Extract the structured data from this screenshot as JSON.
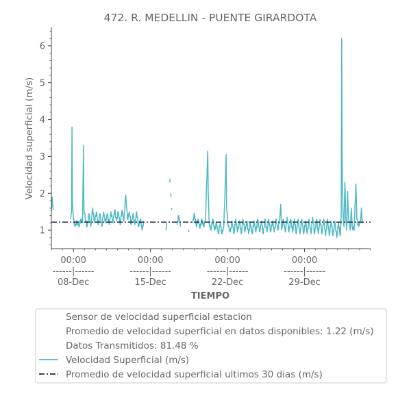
{
  "chart_data": {
    "type": "line",
    "title": "472. R. MEDELLIN - PUENTE GIRARDOTA",
    "xlabel": "TIEMPO",
    "ylabel": "Velocidad superficial (m/s)",
    "ylim": [
      0.5,
      6.5
    ],
    "y_ticks": [
      1,
      2,
      3,
      4,
      5,
      6
    ],
    "x_range_days": [
      "2017-12-06",
      "2018-01-04"
    ],
    "x_ticks": [
      {
        "date": "2017-12-08",
        "time": "00:00",
        "sep": "------|------",
        "day": "08-Dec"
      },
      {
        "date": "2017-12-15",
        "time": "00:00",
        "sep": "------|------",
        "day": "15-Dec"
      },
      {
        "date": "2017-12-22",
        "time": "00:00",
        "sep": "------|------",
        "day": "22-Dec"
      },
      {
        "date": "2017-12-29",
        "time": "00:00",
        "sep": "------|------",
        "day": "29-Dec"
      }
    ],
    "legend_placement": "below",
    "legend_info": [
      "Sensor de velocidad superficial estacion",
      "Promedio de velocidad superficial en datos disponibles: 1.22 (m/s)",
      "Datos Transmitidos: 81.48 %"
    ],
    "series": [
      {
        "name": "Velocidad Superficial (m/s)",
        "color": "#4db8c4",
        "style": "solid",
        "segments": [
          [
            [
              "2017-12-06T00:00",
              1.5
            ],
            [
              "2017-12-06T02:00",
              1.9
            ],
            [
              "2017-12-06T04:00",
              1.55
            ]
          ],
          [
            [
              "2017-12-07T18:00",
              1.3
            ],
            [
              "2017-12-07T20:00",
              1.5
            ],
            [
              "2017-12-07T21:00",
              3.8
            ],
            [
              "2017-12-07T22:00",
              1.7
            ],
            [
              "2017-12-08T00:00",
              1.3
            ],
            [
              "2017-12-08T04:00",
              1.1
            ],
            [
              "2017-12-08T08:00",
              1.25
            ],
            [
              "2017-12-08T12:00",
              1.1
            ],
            [
              "2017-12-08T16:00",
              1.3
            ],
            [
              "2017-12-08T20:00",
              1.2
            ],
            [
              "2017-12-08T22:00",
              3.3
            ],
            [
              "2017-12-08T23:00",
              1.6
            ],
            [
              "2017-12-09T02:00",
              1.3
            ],
            [
              "2017-12-09T06:00",
              1.1
            ],
            [
              "2017-12-09T10:00",
              1.45
            ],
            [
              "2017-12-09T14:00",
              1.1
            ],
            [
              "2017-12-09T18:00",
              1.6
            ],
            [
              "2017-12-09T22:00",
              1.2
            ],
            [
              "2017-12-10T02:00",
              1.5
            ],
            [
              "2017-12-10T06:00",
              1.15
            ],
            [
              "2017-12-10T10:00",
              1.45
            ],
            [
              "2017-12-10T14:00",
              1.1
            ],
            [
              "2017-12-10T18:00",
              1.5
            ],
            [
              "2017-12-10T22:00",
              1.2
            ],
            [
              "2017-12-11T02:00",
              1.45
            ],
            [
              "2017-12-11T06:00",
              1.15
            ],
            [
              "2017-12-11T10:00",
              1.5
            ],
            [
              "2017-12-11T14:00",
              1.2
            ],
            [
              "2017-12-11T18:00",
              1.55
            ],
            [
              "2017-12-11T22:00",
              1.25
            ],
            [
              "2017-12-12T02:00",
              1.5
            ],
            [
              "2017-12-12T06:00",
              1.15
            ],
            [
              "2017-12-12T10:00",
              1.55
            ],
            [
              "2017-12-12T14:00",
              1.25
            ],
            [
              "2017-12-12T18:00",
              1.95
            ],
            [
              "2017-12-12T22:00",
              1.3
            ],
            [
              "2017-12-13T02:00",
              1.5
            ],
            [
              "2017-12-13T06:00",
              1.15
            ],
            [
              "2017-12-13T10:00",
              1.45
            ],
            [
              "2017-12-13T14:00",
              1.15
            ],
            [
              "2017-12-13T18:00",
              1.5
            ],
            [
              "2017-12-13T22:00",
              1.1
            ],
            [
              "2017-12-14T02:00",
              1.3
            ],
            [
              "2017-12-14T06:00",
              1.0
            ],
            [
              "2017-12-14T09:00",
              1.25
            ]
          ],
          [
            [
              "2017-12-16T10:00",
              1.0
            ],
            [
              "2017-12-16T11:00",
              1.2
            ]
          ],
          [
            [
              "2017-12-16T18:00",
              2.3
            ],
            [
              "2017-12-16T19:00",
              2.4
            ]
          ],
          [
            [
              "2017-12-16T20:00",
              2.0
            ],
            [
              "2017-12-16T21:00",
              1.9
            ]
          ],
          [
            [
              "2017-12-16T22:00",
              1.6
            ],
            [
              "2017-12-16T23:00",
              1.55
            ]
          ],
          [
            [
              "2017-12-17T10:00",
              1.15
            ],
            [
              "2017-12-17T14:00",
              1.4
            ],
            [
              "2017-12-17T18:00",
              1.1
            ]
          ],
          [
            [
              "2017-12-18T10:00",
              1.0
            ],
            [
              "2017-12-18T12:00",
              0.95
            ]
          ],
          [
            [
              "2017-12-18T20:00",
              1.2
            ],
            [
              "2017-12-19T00:00",
              1.45
            ],
            [
              "2017-12-19T04:00",
              1.1
            ],
            [
              "2017-12-19T08:00",
              1.3
            ],
            [
              "2017-12-19T12:00",
              1.05
            ],
            [
              "2017-12-19T16:00",
              1.3
            ],
            [
              "2017-12-19T20:00",
              1.1
            ],
            [
              "2017-12-20T00:00",
              1.3
            ],
            [
              "2017-12-20T04:00",
              2.8
            ],
            [
              "2017-12-20T05:00",
              3.15
            ],
            [
              "2017-12-20T06:00",
              2.0
            ],
            [
              "2017-12-20T08:00",
              1.2
            ],
            [
              "2017-12-20T12:00",
              1.0
            ],
            [
              "2017-12-20T16:00",
              1.3
            ],
            [
              "2017-12-20T20:00",
              1.0
            ],
            [
              "2017-12-21T00:00",
              1.2
            ],
            [
              "2017-12-21T04:00",
              0.9
            ],
            [
              "2017-12-21T08:00",
              1.2
            ],
            [
              "2017-12-21T12:00",
              0.9
            ],
            [
              "2017-12-21T16:00",
              1.1
            ],
            [
              "2017-12-21T20:00",
              2.6
            ],
            [
              "2017-12-21T21:00",
              3.05
            ],
            [
              "2017-12-21T22:00",
              1.6
            ],
            [
              "2017-12-22T02:00",
              1.1
            ],
            [
              "2017-12-22T06:00",
              0.95
            ],
            [
              "2017-12-22T10:00",
              1.25
            ],
            [
              "2017-12-22T14:00",
              0.9
            ],
            [
              "2017-12-22T18:00",
              1.3
            ],
            [
              "2017-12-22T22:00",
              0.95
            ],
            [
              "2017-12-23T02:00",
              1.25
            ],
            [
              "2017-12-23T06:00",
              0.9
            ],
            [
              "2017-12-23T10:00",
              1.3
            ],
            [
              "2017-12-23T14:00",
              0.95
            ],
            [
              "2017-12-23T18:00",
              1.25
            ],
            [
              "2017-12-23T22:00",
              0.9
            ],
            [
              "2017-12-24T02:00",
              1.2
            ],
            [
              "2017-12-24T06:00",
              0.9
            ],
            [
              "2017-12-24T10:00",
              1.25
            ],
            [
              "2017-12-24T14:00",
              0.95
            ],
            [
              "2017-12-24T18:00",
              1.3
            ],
            [
              "2017-12-24T22:00",
              0.95
            ],
            [
              "2017-12-25T02:00",
              1.25
            ],
            [
              "2017-12-25T06:00",
              0.9
            ],
            [
              "2017-12-25T10:00",
              1.3
            ],
            [
              "2017-12-25T14:00",
              0.95
            ],
            [
              "2017-12-25T18:00",
              1.3
            ],
            [
              "2017-12-25T22:00",
              0.95
            ],
            [
              "2017-12-26T02:00",
              1.25
            ],
            [
              "2017-12-26T06:00",
              0.95
            ],
            [
              "2017-12-26T10:00",
              1.3
            ],
            [
              "2017-12-26T14:00",
              1.0
            ],
            [
              "2017-12-26T18:00",
              1.3
            ],
            [
              "2017-12-26T20:00",
              1.7
            ],
            [
              "2017-12-26T22:00",
              1.0
            ],
            [
              "2017-12-27T02:00",
              1.3
            ],
            [
              "2017-12-27T06:00",
              0.95
            ],
            [
              "2017-12-27T10:00",
              1.35
            ],
            [
              "2017-12-27T14:00",
              0.95
            ],
            [
              "2017-12-27T18:00",
              1.3
            ],
            [
              "2017-12-27T22:00",
              0.95
            ],
            [
              "2017-12-28T02:00",
              1.3
            ],
            [
              "2017-12-28T06:00",
              0.9
            ],
            [
              "2017-12-28T10:00",
              1.3
            ],
            [
              "2017-12-28T14:00",
              0.9
            ],
            [
              "2017-12-28T18:00",
              1.3
            ],
            [
              "2017-12-28T22:00",
              0.9
            ],
            [
              "2017-12-29T02:00",
              1.25
            ],
            [
              "2017-12-29T06:00",
              0.9
            ],
            [
              "2017-12-29T10:00",
              1.3
            ],
            [
              "2017-12-29T14:00",
              0.9
            ],
            [
              "2017-12-29T18:00",
              1.35
            ],
            [
              "2017-12-29T22:00",
              0.9
            ],
            [
              "2017-12-30T02:00",
              1.3
            ],
            [
              "2017-12-30T06:00",
              0.9
            ],
            [
              "2017-12-30T10:00",
              1.3
            ],
            [
              "2017-12-30T14:00",
              0.9
            ],
            [
              "2017-12-30T18:00",
              1.3
            ],
            [
              "2017-12-30T22:00",
              0.85
            ],
            [
              "2017-12-31T02:00",
              1.3
            ],
            [
              "2017-12-31T06:00",
              0.85
            ],
            [
              "2017-12-31T10:00",
              1.25
            ],
            [
              "2017-12-31T14:00",
              0.85
            ],
            [
              "2017-12-31T18:00",
              1.25
            ],
            [
              "2017-12-31T22:00",
              0.8
            ],
            [
              "2018-01-01T02:00",
              1.2
            ],
            [
              "2018-01-01T06:00",
              0.85
            ],
            [
              "2018-01-01T08:00",
              1.4
            ],
            [
              "2018-01-01T09:00",
              6.2
            ],
            [
              "2018-01-01T10:00",
              2.8
            ],
            [
              "2018-01-01T12:00",
              1.5
            ],
            [
              "2018-01-01T14:00",
              1.1
            ],
            [
              "2018-01-01T16:00",
              2.3
            ],
            [
              "2018-01-01T18:00",
              1.3
            ],
            [
              "2018-01-01T20:00",
              1.0
            ],
            [
              "2018-01-01T22:00",
              2.05
            ],
            [
              "2018-01-02T00:00",
              1.3
            ],
            [
              "2018-01-02T04:00",
              1.0
            ],
            [
              "2018-01-02T06:00",
              1.6
            ],
            [
              "2018-01-02T08:00",
              1.1
            ],
            [
              "2018-01-02T12:00",
              1.0
            ],
            [
              "2018-01-02T16:00",
              2.25
            ],
            [
              "2018-01-02T18:00",
              1.3
            ],
            [
              "2018-01-02T22:00",
              1.1
            ],
            [
              "2018-01-03T02:00",
              1.25
            ],
            [
              "2018-01-03T04:00",
              1.6
            ],
            [
              "2018-01-03T06:00",
              1.2
            ]
          ]
        ]
      },
      {
        "name": "Promedio de velocidad superficial ultimos 30 dias (m/s)",
        "color": "#1f2041",
        "style": "dashdot",
        "value": 1.22
      }
    ]
  }
}
